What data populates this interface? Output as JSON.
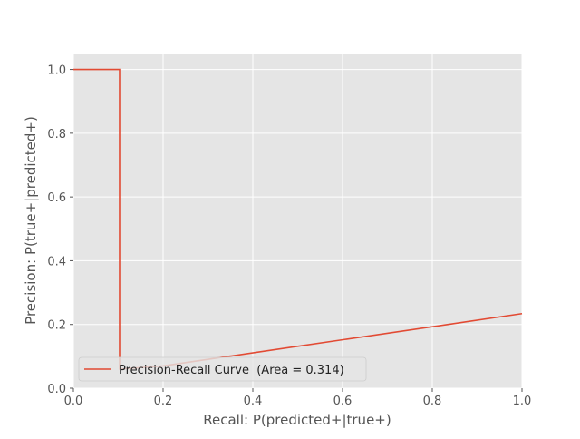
{
  "chart_data": {
    "type": "line",
    "xlabel": "Recall: P(predicted+|true+)",
    "ylabel": "Precision: P(true+|predicted+)",
    "xlim": [
      0.0,
      1.0
    ],
    "ylim": [
      0.0,
      1.05
    ],
    "xticks": [
      0.0,
      0.2,
      0.4,
      0.6,
      0.8,
      1.0
    ],
    "xtick_labels": [
      "0.0",
      "0.2",
      "0.4",
      "0.6",
      "0.8",
      "1.0"
    ],
    "yticks": [
      0.0,
      0.2,
      0.4,
      0.6,
      0.8,
      1.0
    ],
    "ytick_labels": [
      "0.0",
      "0.2",
      "0.4",
      "0.6",
      "0.8",
      "1.0"
    ],
    "grid": true,
    "legend_position": "lower-left",
    "series": [
      {
        "name": "Precision-Recall Curve  (Area = 0.314)",
        "color": "#e24a33",
        "x": [
          0.0,
          0.103,
          0.103,
          0.2,
          1.0
        ],
        "y": [
          1.0,
          1.0,
          0.06,
          0.07,
          0.234
        ]
      }
    ]
  },
  "colors": {
    "plot_background": "#e5e5e5",
    "grid": "#ffffff",
    "line": "#e24a33"
  }
}
